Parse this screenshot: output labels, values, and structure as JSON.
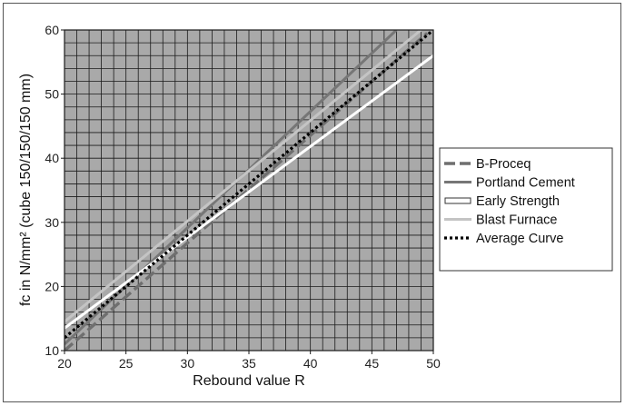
{
  "chart_data": {
    "type": "line",
    "title": "",
    "xlabel": "Rebound value R",
    "ylabel": "fc in N/mm² (cube 150/150/150 mm)",
    "xlim": [
      20,
      50
    ],
    "ylim": [
      10,
      60
    ],
    "x_ticks": [
      "20",
      "25",
      "30",
      "35",
      "40",
      "45",
      "50"
    ],
    "y_ticks": [
      "10",
      "20",
      "30",
      "40",
      "50",
      "60"
    ],
    "grid": true,
    "legend_position": "right",
    "plot_background": "#a9a9a9",
    "grid_color": "#1a1a1a",
    "series": [
      {
        "name": "B-Proceq",
        "color": "#6f6f6f",
        "style": "dashed",
        "x": [
          20,
          49.5
        ],
        "y": [
          10,
          59.5
        ]
      },
      {
        "name": "Portland Cement",
        "color": "#767676",
        "style": "solid",
        "x": [
          20,
          47
        ],
        "y": [
          11,
          60
        ]
      },
      {
        "name": "Early Strength",
        "color": "#ffffff",
        "style": "solid-outline",
        "x": [
          20,
          50
        ],
        "y": [
          13.5,
          56
        ]
      },
      {
        "name": "Blast Furnace",
        "color": "#c4c4c4",
        "style": "solid",
        "x": [
          20,
          49
        ],
        "y": [
          14.5,
          60
        ]
      },
      {
        "name": "Average Curve",
        "color": "#000000",
        "style": "dotted",
        "x": [
          20,
          50
        ],
        "y": [
          12,
          60
        ]
      }
    ]
  }
}
